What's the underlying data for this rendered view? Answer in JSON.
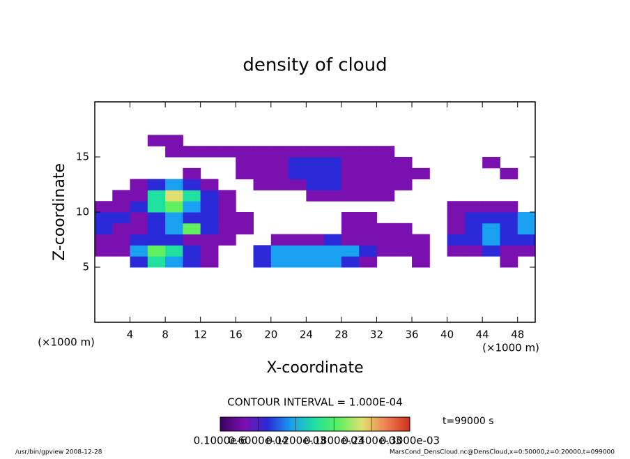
{
  "chart_data": {
    "type": "heatmap",
    "title": "density of cloud",
    "xlabel": "X-coordinate",
    "ylabel": "Z-coordinate",
    "xunit": "(×1000 m)",
    "yunit": "(×1000 m)",
    "xlim": [
      0,
      50
    ],
    "ylim": [
      0,
      20
    ],
    "xticks": [
      4,
      8,
      12,
      16,
      20,
      24,
      28,
      32,
      36,
      40,
      44,
      48
    ],
    "yticks": [
      5,
      10,
      15
    ],
    "x": [
      1,
      3,
      5,
      7,
      9,
      11,
      13,
      15,
      17,
      19,
      21,
      23,
      25,
      27,
      29,
      31,
      33,
      35,
      37,
      39,
      41,
      43,
      45,
      47,
      49
    ],
    "y": [
      5.5,
      6.5,
      7.5,
      8.5,
      9.5,
      10.5,
      11.5,
      12.5,
      13.5,
      14.5,
      15.5,
      16.5
    ],
    "z": [
      [
        null,
        null,
        8e-05,
        0.00015,
        0.00012,
        6e-05,
        3e-05,
        null,
        null,
        6e-05,
        0.0001,
        0.00012,
        0.00012,
        0.0001,
        8e-05,
        5e-05,
        null,
        null,
        2e-05,
        null,
        null,
        null,
        null,
        2e-05,
        null
      ],
      [
        2e-05,
        3e-05,
        0.00012,
        0.0002,
        0.00015,
        8e-05,
        3e-05,
        null,
        null,
        8e-05,
        0.00011,
        0.0001,
        0.00011,
        0.00012,
        0.0001,
        6e-05,
        2e-05,
        3e-05,
        2e-05,
        null,
        4e-05,
        5e-05,
        6e-05,
        5e-05,
        4e-05
      ],
      [
        5e-05,
        4e-05,
        6e-05,
        8e-05,
        6e-05,
        5e-05,
        4e-05,
        3e-05,
        null,
        null,
        3e-05,
        4e-05,
        5e-05,
        6e-05,
        4e-05,
        3e-05,
        2e-05,
        3e-05,
        2e-05,
        null,
        6e-05,
        8e-05,
        0.0001,
        8e-05,
        9e-05
      ],
      [
        6e-05,
        5e-05,
        4e-05,
        7e-05,
        0.0001,
        0.00018,
        6e-05,
        5e-05,
        2e-05,
        null,
        null,
        null,
        null,
        null,
        3e-05,
        3e-05,
        4e-05,
        2e-05,
        null,
        null,
        5e-05,
        9e-05,
        0.00011,
        9e-05,
        0.00012
      ],
      [
        7e-05,
        6e-05,
        5e-05,
        8e-05,
        0.00011,
        9e-05,
        6e-05,
        5e-05,
        3e-05,
        null,
        null,
        null,
        null,
        null,
        2e-05,
        3e-05,
        null,
        null,
        null,
        null,
        4e-05,
        7e-05,
        8e-05,
        7e-05,
        0.0001
      ],
      [
        3e-05,
        4e-05,
        8e-05,
        0.00014,
        0.00018,
        0.00012,
        8e-05,
        4e-05,
        null,
        null,
        null,
        null,
        null,
        null,
        null,
        null,
        null,
        null,
        null,
        null,
        2e-05,
        3e-05,
        4e-05,
        3e-05,
        null
      ],
      [
        null,
        2e-05,
        5e-05,
        0.00015,
        0.00022,
        0.00014,
        8e-05,
        3e-05,
        null,
        null,
        null,
        null,
        2e-05,
        3e-05,
        3e-05,
        3e-05,
        2e-05,
        null,
        null,
        null,
        null,
        null,
        null,
        null,
        null
      ],
      [
        null,
        null,
        2e-05,
        6e-05,
        0.0001,
        8e-05,
        5e-05,
        null,
        null,
        3e-05,
        4e-05,
        5e-05,
        6e-05,
        6e-05,
        5e-05,
        4e-05,
        3e-05,
        2e-05,
        null,
        null,
        null,
        null,
        null,
        null,
        null
      ],
      [
        null,
        null,
        null,
        null,
        null,
        2e-05,
        null,
        null,
        2e-05,
        4e-05,
        5e-05,
        7e-05,
        8e-05,
        7e-05,
        5e-05,
        4e-05,
        4e-05,
        3e-05,
        2e-05,
        null,
        null,
        null,
        null,
        2e-05,
        null
      ],
      [
        null,
        null,
        null,
        null,
        null,
        null,
        null,
        null,
        3e-05,
        4e-05,
        5e-05,
        7e-05,
        8e-05,
        6e-05,
        5e-05,
        4e-05,
        4e-05,
        3e-05,
        null,
        null,
        null,
        null,
        2e-05,
        null,
        null
      ],
      [
        null,
        null,
        null,
        null,
        2e-05,
        3e-05,
        3e-05,
        2e-05,
        2e-05,
        3e-05,
        4e-05,
        4e-05,
        4e-05,
        3e-05,
        3e-05,
        3e-05,
        3e-05,
        null,
        null,
        null,
        null,
        null,
        null,
        null,
        null
      ],
      [
        null,
        null,
        null,
        2e-05,
        2e-05,
        null,
        null,
        null,
        null,
        null,
        null,
        null,
        null,
        null,
        null,
        null,
        null,
        null,
        null,
        null,
        null,
        null,
        null,
        null,
        null
      ]
    ],
    "colormap": [
      "#3a0060",
      "#7a10b0",
      "#2a2ad8",
      "#1aa0f0",
      "#20e0a0",
      "#60f060",
      "#e0e070",
      "#f08050",
      "#d03020"
    ],
    "clim": [
      1e-07,
      0.0003
    ],
    "cticks": [
      {
        "value": 1e-07,
        "label": "0.1000e-6"
      },
      {
        "value": 6e-05,
        "label": "0.6000e-04"
      },
      {
        "value": 0.00012,
        "label": "0.1200e-03"
      },
      {
        "value": 0.00018,
        "label": "0.1800e-03"
      },
      {
        "value": 0.00024,
        "label": "0.2400e-03"
      },
      {
        "value": 0.0003,
        "label": "0.3000e-03"
      }
    ],
    "contour_interval": "CONTOUR INTERVAL = 1.000E-04",
    "time": "t=99000 s",
    "footer_left": "/usr/bin/gpview   2008-12-28",
    "footer_right": "MarsCond_DensCloud.nc@DensCloud,x=0:50000,z=0:20000,t=099000"
  }
}
